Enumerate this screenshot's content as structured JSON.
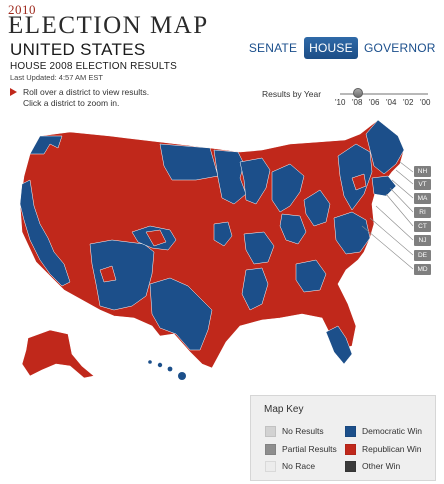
{
  "header": {
    "year_kicker": "2010",
    "title": "ELECTION MAP"
  },
  "region": {
    "title": "UNITED STATES",
    "subtitle": "HOUSE 2008 ELECTION RESULTS",
    "last_updated": "Last Updated: 4:57 AM EST"
  },
  "instructions": {
    "line1": "Roll over a district to view results.",
    "line2": "Click a district to zoom in."
  },
  "race_tabs": [
    {
      "label": "SENATE",
      "active": false
    },
    {
      "label": "HOUSE",
      "active": true
    },
    {
      "label": "GOVERNOR",
      "active": false
    }
  ],
  "year_slider": {
    "label": "Results by Year",
    "ticks": [
      "'10",
      "'08",
      "'06",
      "'04",
      "'02",
      "'00"
    ],
    "selected": "'08"
  },
  "map": {
    "small_state_buttons": [
      "NH",
      "VT",
      "MA",
      "RI",
      "CT",
      "NJ",
      "DE",
      "MD"
    ]
  },
  "legend": {
    "title": "Map Key",
    "items": [
      {
        "label": "No Results",
        "color": "#d2d2d2"
      },
      {
        "label": "Democratic Win",
        "color": "#1c4f8a"
      },
      {
        "label": "Partial Results",
        "color": "#8e8e8e"
      },
      {
        "label": "Republican Win",
        "color": "#c0281b"
      },
      {
        "label": "No Race",
        "color": "#ececec"
      },
      {
        "label": "Other Win",
        "color": "#3a3a3a"
      }
    ]
  },
  "colors": {
    "democratic": "#1c4f8a",
    "republican": "#c0281b",
    "accent": "#9e2a1e",
    "tab_active": "#2a62a0",
    "small_state_button": "#7f7f7f"
  }
}
